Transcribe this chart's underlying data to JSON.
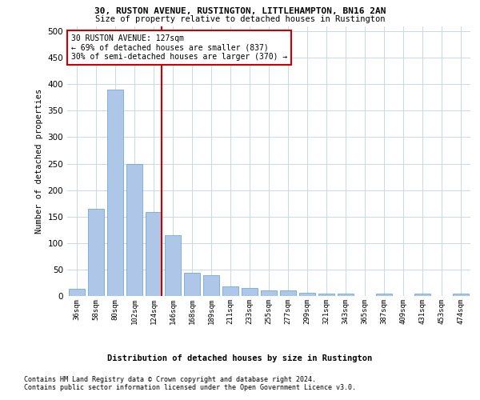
{
  "title1": "30, RUSTON AVENUE, RUSTINGTON, LITTLEHAMPTON, BN16 2AN",
  "title2": "Size of property relative to detached houses in Rustington",
  "xlabel": "Distribution of detached houses by size in Rustington",
  "ylabel": "Number of detached properties",
  "footer1": "Contains HM Land Registry data © Crown copyright and database right 2024.",
  "footer2": "Contains public sector information licensed under the Open Government Licence v3.0.",
  "annotation_line1": "30 RUSTON AVENUE: 127sqm",
  "annotation_line2": "← 69% of detached houses are smaller (837)",
  "annotation_line3": "30% of semi-detached houses are larger (370) →",
  "bar_categories": [
    "36sqm",
    "58sqm",
    "80sqm",
    "102sqm",
    "124sqm",
    "146sqm",
    "168sqm",
    "189sqm",
    "211sqm",
    "233sqm",
    "255sqm",
    "277sqm",
    "299sqm",
    "321sqm",
    "343sqm",
    "365sqm",
    "387sqm",
    "409sqm",
    "431sqm",
    "453sqm",
    "474sqm"
  ],
  "bar_values": [
    13,
    165,
    390,
    250,
    158,
    115,
    44,
    40,
    18,
    15,
    10,
    10,
    6,
    5,
    4,
    0,
    5,
    0,
    5,
    0,
    5
  ],
  "bar_color": "#aec6e8",
  "bar_edge_color": "#5a9fd4",
  "vline_color": "#cc0000",
  "vline_bar_index": 4,
  "annotation_box_color": "#cc0000",
  "background_color": "#ffffff",
  "grid_color": "#c8d8e8",
  "ylim": [
    0,
    510
  ],
  "yticks": [
    0,
    50,
    100,
    150,
    200,
    250,
    300,
    350,
    400,
    450,
    500
  ]
}
